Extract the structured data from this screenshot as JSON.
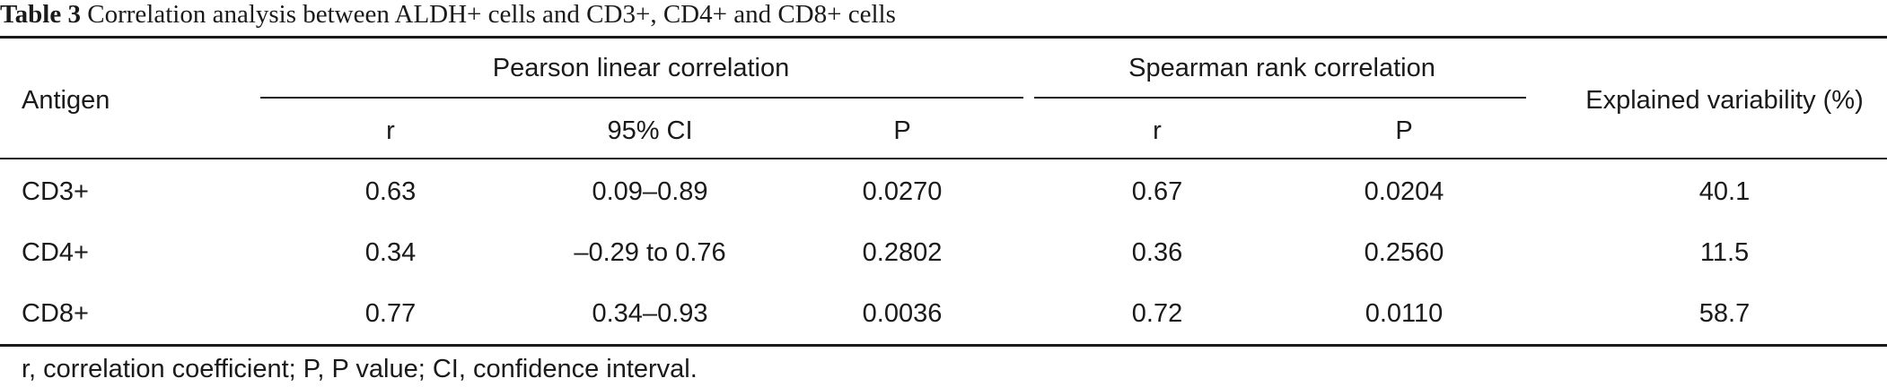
{
  "caption": {
    "number": "Table 3",
    "title": "Correlation analysis between ALDH+ cells and CD3+, CD4+ and CD8+ cells"
  },
  "table": {
    "row_header": "Antigen",
    "groups": {
      "pearson": "Pearson linear correlation",
      "spearman": "Spearman rank correlation"
    },
    "columns": {
      "pearson_r": "r",
      "pearson_ci": "95% CI",
      "pearson_p": "P",
      "spearman_r": "r",
      "spearman_p": "P",
      "variability": "Explained variability (%)"
    },
    "rows": [
      {
        "antigen": "CD3+",
        "pearson_r": "0.63",
        "ci": "0.09–0.89",
        "pearson_p": "0.0270",
        "spearman_r": "0.67",
        "spearman_p": "0.0204",
        "variability": "40.1"
      },
      {
        "antigen": "CD4+",
        "pearson_r": "0.34",
        "ci": "–0.29 to 0.76",
        "pearson_p": "0.2802",
        "spearman_r": "0.36",
        "spearman_p": "0.2560",
        "variability": "11.5"
      },
      {
        "antigen": "CD8+",
        "pearson_r": "0.77",
        "ci": "0.34–0.93",
        "pearson_p": "0.0036",
        "spearman_r": "0.72",
        "spearman_p": "0.0110",
        "variability": "58.7"
      }
    ]
  },
  "footnote": "r, correlation coefficient; P, P value; CI, confidence interval."
}
